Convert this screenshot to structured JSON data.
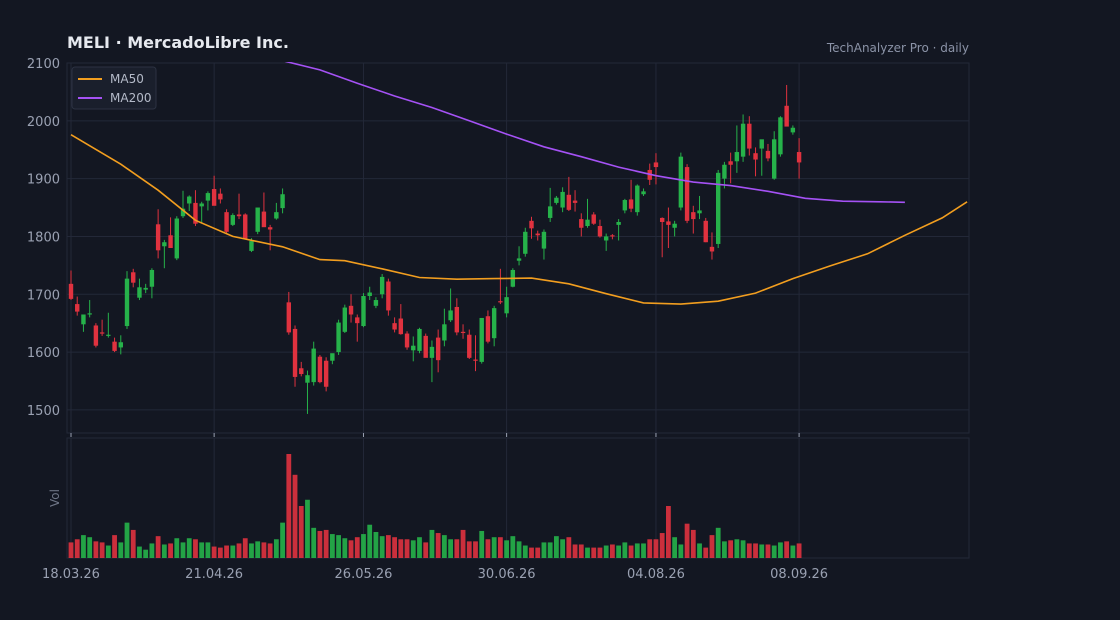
{
  "header": {
    "title": "MELI  ·  MercadoLibre Inc.",
    "source": "TechAnalyzer Pro · daily"
  },
  "colors": {
    "background": "#131722",
    "grid": "#232838",
    "up": "#26b24a",
    "down": "#e0323f",
    "ma50": "#f29e1f",
    "ma200": "#a552f5"
  },
  "chart_data": {
    "type": "candlestick",
    "grid": true,
    "legend_position": "top-left",
    "ylim": [
      1460,
      2100
    ],
    "y_ticks": [
      1500,
      1600,
      1700,
      1800,
      1900,
      2000,
      2100
    ],
    "x_ticks": [
      "18.03.26",
      "21.04.26",
      "26.05.26",
      "30.06.26",
      "04.08.26",
      "08.09.26"
    ],
    "volume_label": "Vol",
    "series": [
      {
        "name": "MA50",
        "role": "ma50"
      },
      {
        "name": "MA200",
        "role": "ma200"
      }
    ],
    "ma50_points": [
      [
        0,
        1976
      ],
      [
        8,
        1925
      ],
      [
        14,
        1880
      ],
      [
        20,
        1828
      ],
      [
        26,
        1800
      ],
      [
        34,
        1782
      ],
      [
        40,
        1760
      ],
      [
        44,
        1758
      ],
      [
        50,
        1744
      ],
      [
        56,
        1729
      ],
      [
        62,
        1726
      ],
      [
        68,
        1727
      ],
      [
        74,
        1728
      ],
      [
        80,
        1718
      ],
      [
        86,
        1701
      ],
      [
        92,
        1685
      ],
      [
        98,
        1683
      ],
      [
        104,
        1688
      ],
      [
        110,
        1702
      ],
      [
        116,
        1727
      ],
      [
        122,
        1749
      ],
      [
        128,
        1770
      ],
      [
        134,
        1802
      ],
      [
        140,
        1832
      ],
      [
        144,
        1860
      ]
    ],
    "ma200_points": [
      [
        34,
        2104
      ],
      [
        40,
        2088
      ],
      [
        46,
        2065
      ],
      [
        52,
        2043
      ],
      [
        58,
        2023
      ],
      [
        64,
        2000
      ],
      [
        70,
        1977
      ],
      [
        76,
        1955
      ],
      [
        82,
        1938
      ],
      [
        88,
        1920
      ],
      [
        94,
        1905
      ],
      [
        100,
        1894
      ],
      [
        106,
        1888
      ],
      [
        112,
        1878
      ],
      [
        118,
        1866
      ],
      [
        124,
        1861
      ],
      [
        130,
        1860
      ],
      [
        134,
        1859
      ]
    ],
    "candles": [
      [
        1718,
        1741,
        1690,
        1692,
        0.15
      ],
      [
        1683,
        1696,
        1663,
        1670,
        0.18
      ],
      [
        1648,
        1665,
        1635,
        1665,
        0.22
      ],
      [
        1665,
        1690,
        1660,
        1667,
        0.2
      ],
      [
        1646,
        1650,
        1608,
        1611,
        0.16
      ],
      [
        1634,
        1656,
        1628,
        1632,
        0.15
      ],
      [
        1628,
        1668,
        1625,
        1630,
        0.12
      ],
      [
        1618,
        1625,
        1600,
        1602,
        0.22
      ],
      [
        1608,
        1629,
        1596,
        1617,
        0.15
      ],
      [
        1645,
        1740,
        1640,
        1727,
        0.34
      ],
      [
        1738,
        1744,
        1712,
        1720,
        0.27
      ],
      [
        1694,
        1727,
        1690,
        1712,
        0.11
      ],
      [
        1708,
        1718,
        1702,
        1711,
        0.08
      ],
      [
        1713,
        1745,
        1693,
        1742,
        0.14
      ],
      [
        1821,
        1847,
        1762,
        1776,
        0.21
      ],
      [
        1783,
        1794,
        1745,
        1790,
        0.13
      ],
      [
        1802,
        1833,
        1786,
        1780,
        0.14
      ],
      [
        1762,
        1835,
        1759,
        1831,
        0.19
      ],
      [
        1835,
        1879,
        1832,
        1848,
        0.15
      ],
      [
        1857,
        1871,
        1844,
        1869,
        0.19
      ],
      [
        1858,
        1880,
        1818,
        1822,
        0.18
      ],
      [
        1852,
        1860,
        1824,
        1857,
        0.15
      ],
      [
        1862,
        1878,
        1845,
        1875,
        0.15
      ],
      [
        1882,
        1905,
        1855,
        1853,
        0.11
      ],
      [
        1874,
        1883,
        1857,
        1864,
        0.1
      ],
      [
        1842,
        1847,
        1806,
        1808,
        0.12
      ],
      [
        1820,
        1840,
        1818,
        1837,
        0.12
      ],
      [
        1838,
        1874,
        1830,
        1835,
        0.14
      ],
      [
        1838,
        1840,
        1795,
        1796,
        0.19
      ],
      [
        1775,
        1797,
        1773,
        1792,
        0.14
      ],
      [
        1808,
        1847,
        1804,
        1850,
        0.16
      ],
      [
        1843,
        1876,
        1820,
        1816,
        0.15
      ],
      [
        1816,
        1820,
        1776,
        1812,
        0.14
      ],
      [
        1831,
        1858,
        1829,
        1842,
        0.18
      ],
      [
        1849,
        1883,
        1840,
        1873,
        0.34
      ],
      [
        1686,
        1704,
        1630,
        1634,
        1.0
      ],
      [
        1640,
        1646,
        1540,
        1557,
        0.8
      ],
      [
        1572,
        1583,
        1558,
        1562,
        0.5
      ],
      [
        1547,
        1568,
        1493,
        1560,
        0.56
      ],
      [
        1548,
        1618,
        1542,
        1606,
        0.29
      ],
      [
        1592,
        1595,
        1546,
        1548,
        0.26
      ],
      [
        1585,
        1591,
        1532,
        1540,
        0.27
      ],
      [
        1585,
        1597,
        1579,
        1598,
        0.23
      ],
      [
        1600,
        1656,
        1595,
        1651,
        0.22
      ],
      [
        1635,
        1682,
        1633,
        1677,
        0.19
      ],
      [
        1680,
        1700,
        1651,
        1665,
        0.17
      ],
      [
        1660,
        1665,
        1618,
        1650,
        0.2
      ],
      [
        1645,
        1702,
        1643,
        1697,
        0.23
      ],
      [
        1697,
        1713,
        1690,
        1703,
        0.32
      ],
      [
        1680,
        1695,
        1676,
        1690,
        0.25
      ],
      [
        1700,
        1735,
        1693,
        1730,
        0.21
      ],
      [
        1722,
        1727,
        1663,
        1672,
        0.22
      ],
      [
        1650,
        1660,
        1634,
        1639,
        0.2
      ],
      [
        1658,
        1683,
        1630,
        1631,
        0.18
      ],
      [
        1632,
        1636,
        1604,
        1608,
        0.18
      ],
      [
        1603,
        1627,
        1584,
        1611,
        0.17
      ],
      [
        1602,
        1642,
        1598,
        1640,
        0.2
      ],
      [
        1628,
        1632,
        1595,
        1590,
        0.15
      ],
      [
        1590,
        1620,
        1548,
        1609,
        0.27
      ],
      [
        1625,
        1639,
        1565,
        1586,
        0.24
      ],
      [
        1620,
        1675,
        1610,
        1648,
        0.22
      ],
      [
        1655,
        1710,
        1652,
        1672,
        0.18
      ],
      [
        1678,
        1693,
        1629,
        1634,
        0.18
      ],
      [
        1635,
        1648,
        1623,
        1633,
        0.27
      ],
      [
        1630,
        1639,
        1588,
        1590,
        0.16
      ],
      [
        1587,
        1629,
        1567,
        1585,
        0.16
      ],
      [
        1583,
        1657,
        1580,
        1659,
        0.26
      ],
      [
        1662,
        1672,
        1615,
        1618,
        0.18
      ],
      [
        1624,
        1680,
        1610,
        1676,
        0.2
      ],
      [
        1688,
        1744,
        1683,
        1687,
        0.2
      ],
      [
        1667,
        1713,
        1660,
        1695,
        0.17
      ],
      [
        1713,
        1745,
        1712,
        1742,
        0.21
      ],
      [
        1758,
        1783,
        1750,
        1762,
        0.16
      ],
      [
        1770,
        1815,
        1765,
        1808,
        0.12
      ],
      [
        1827,
        1834,
        1796,
        1814,
        0.1
      ],
      [
        1805,
        1810,
        1793,
        1802,
        0.1
      ],
      [
        1779,
        1812,
        1760,
        1808,
        0.15
      ],
      [
        1832,
        1884,
        1825,
        1852,
        0.15
      ],
      [
        1858,
        1870,
        1855,
        1867,
        0.21
      ],
      [
        1850,
        1885,
        1842,
        1877,
        0.18
      ],
      [
        1872,
        1903,
        1844,
        1846,
        0.2
      ],
      [
        1862,
        1880,
        1843,
        1858,
        0.13
      ],
      [
        1830,
        1840,
        1800,
        1815,
        0.13
      ],
      [
        1818,
        1865,
        1815,
        1829,
        0.1
      ],
      [
        1838,
        1842,
        1820,
        1822,
        0.1
      ],
      [
        1818,
        1829,
        1798,
        1800,
        0.1
      ],
      [
        1793,
        1805,
        1775,
        1800,
        0.12
      ],
      [
        1802,
        1804,
        1795,
        1800,
        0.13
      ],
      [
        1820,
        1830,
        1793,
        1825,
        0.12
      ],
      [
        1845,
        1865,
        1840,
        1863,
        0.15
      ],
      [
        1864,
        1898,
        1842,
        1848,
        0.12
      ],
      [
        1842,
        1890,
        1836,
        1888,
        0.14
      ],
      [
        1873,
        1883,
        1870,
        1878,
        0.14
      ],
      [
        1915,
        1926,
        1889,
        1898,
        0.18
      ],
      [
        1928,
        1944,
        1890,
        1920,
        0.18
      ],
      [
        1832,
        1833,
        1764,
        1825,
        0.24
      ],
      [
        1826,
        1850,
        1780,
        1820,
        0.5
      ],
      [
        1815,
        1827,
        1800,
        1822,
        0.2
      ],
      [
        1850,
        1945,
        1845,
        1938,
        0.13
      ],
      [
        1920,
        1925,
        1823,
        1827,
        0.33
      ],
      [
        1842,
        1853,
        1805,
        1830,
        0.27
      ],
      [
        1840,
        1870,
        1830,
        1845,
        0.14
      ],
      [
        1827,
        1832,
        1790,
        1790,
        0.1
      ],
      [
        1782,
        1807,
        1760,
        1774,
        0.22
      ],
      [
        1787,
        1915,
        1780,
        1910,
        0.29
      ],
      [
        1900,
        1929,
        1883,
        1924,
        0.16
      ],
      [
        1930,
        1945,
        1892,
        1924,
        0.17
      ],
      [
        1930,
        1992,
        1910,
        1946,
        0.18
      ],
      [
        1938,
        2011,
        1929,
        1995,
        0.17
      ],
      [
        1995,
        2008,
        1940,
        1952,
        0.14
      ],
      [
        1944,
        1954,
        1904,
        1933,
        0.14
      ],
      [
        1952,
        1966,
        1905,
        1968,
        0.13
      ],
      [
        1948,
        1960,
        1930,
        1935,
        0.13
      ],
      [
        1900,
        1982,
        1898,
        1968,
        0.12
      ],
      [
        1942,
        2008,
        1938,
        2006,
        0.15
      ],
      [
        2026,
        2062,
        1993,
        1990,
        0.16
      ],
      [
        1980,
        1992,
        1976,
        1988,
        0.12
      ],
      [
        1946,
        1970,
        1900,
        1928,
        0.14
      ]
    ]
  }
}
